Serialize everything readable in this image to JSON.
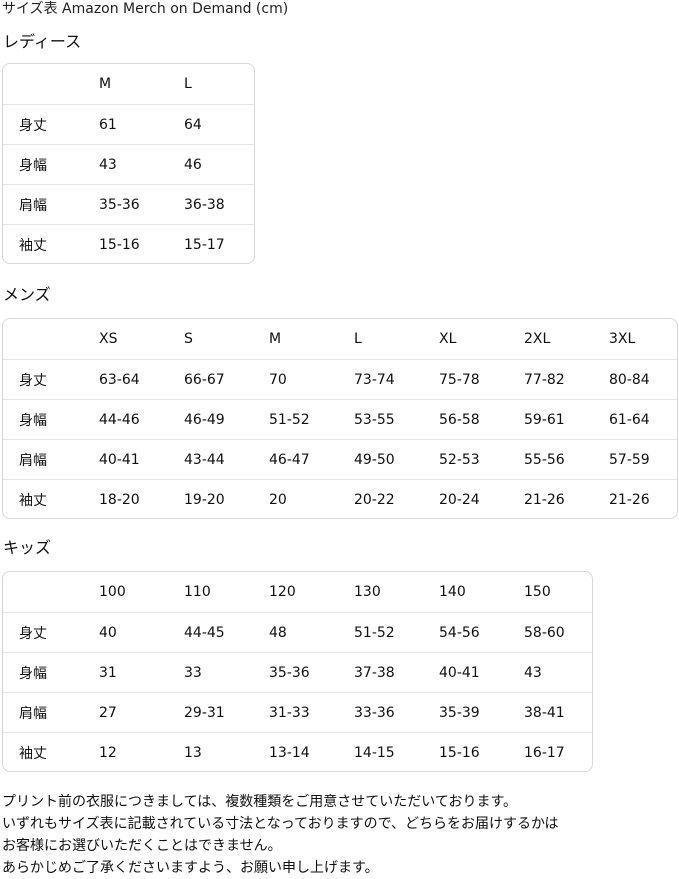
{
  "title": "サイズ表 Amazon Merch on Demand (cm)",
  "sections": [
    {
      "name": "レディース",
      "headers": [
        "M",
        "L"
      ],
      "rows": [
        {
          "label": "身丈",
          "values": [
            "61",
            "64"
          ]
        },
        {
          "label": "身幅",
          "values": [
            "43",
            "46"
          ]
        },
        {
          "label": "肩幅",
          "values": [
            "35-36",
            "36-38"
          ]
        },
        {
          "label": "袖丈",
          "values": [
            "15-16",
            "15-17"
          ]
        }
      ]
    },
    {
      "name": "メンズ",
      "headers": [
        "XS",
        "S",
        "M",
        "L",
        "XL",
        "2XL",
        "3XL"
      ],
      "rows": [
        {
          "label": "身丈",
          "values": [
            "63-64",
            "66-67",
            "70",
            "73-74",
            "75-78",
            "77-82",
            "80-84"
          ]
        },
        {
          "label": "身幅",
          "values": [
            "44-46",
            "46-49",
            "51-52",
            "53-55",
            "56-58",
            "59-61",
            "61-64"
          ]
        },
        {
          "label": "肩幅",
          "values": [
            "40-41",
            "43-44",
            "46-47",
            "49-50",
            "52-53",
            "55-56",
            "57-59"
          ]
        },
        {
          "label": "袖丈",
          "values": [
            "18-20",
            "19-20",
            "20",
            "20-22",
            "20-24",
            "21-26",
            "21-26"
          ]
        }
      ]
    },
    {
      "name": "キッズ",
      "headers": [
        "100",
        "110",
        "120",
        "130",
        "140",
        "150"
      ],
      "rows": [
        {
          "label": "身丈",
          "values": [
            "40",
            "44-45",
            "48",
            "51-52",
            "54-56",
            "58-60"
          ]
        },
        {
          "label": "身幅",
          "values": [
            "31",
            "33",
            "35-36",
            "37-38",
            "40-41",
            "43"
          ]
        },
        {
          "label": "肩幅",
          "values": [
            "27",
            "29-31",
            "31-33",
            "33-36",
            "35-39",
            "38-41"
          ]
        },
        {
          "label": "袖丈",
          "values": [
            "12",
            "13",
            "13-14",
            "14-15",
            "15-16",
            "16-17"
          ]
        }
      ]
    }
  ],
  "notes": [
    "プリント前の衣服につきましては、複数種類をご用意させていただいております。",
    "いずれもサイズ表に記載されている寸法となっておりますので、どちらをお届けするかは",
    "お客様にお選びいただくことはできません。",
    "あらかじめご了承くださいますよう、お願い申し上げます。"
  ]
}
